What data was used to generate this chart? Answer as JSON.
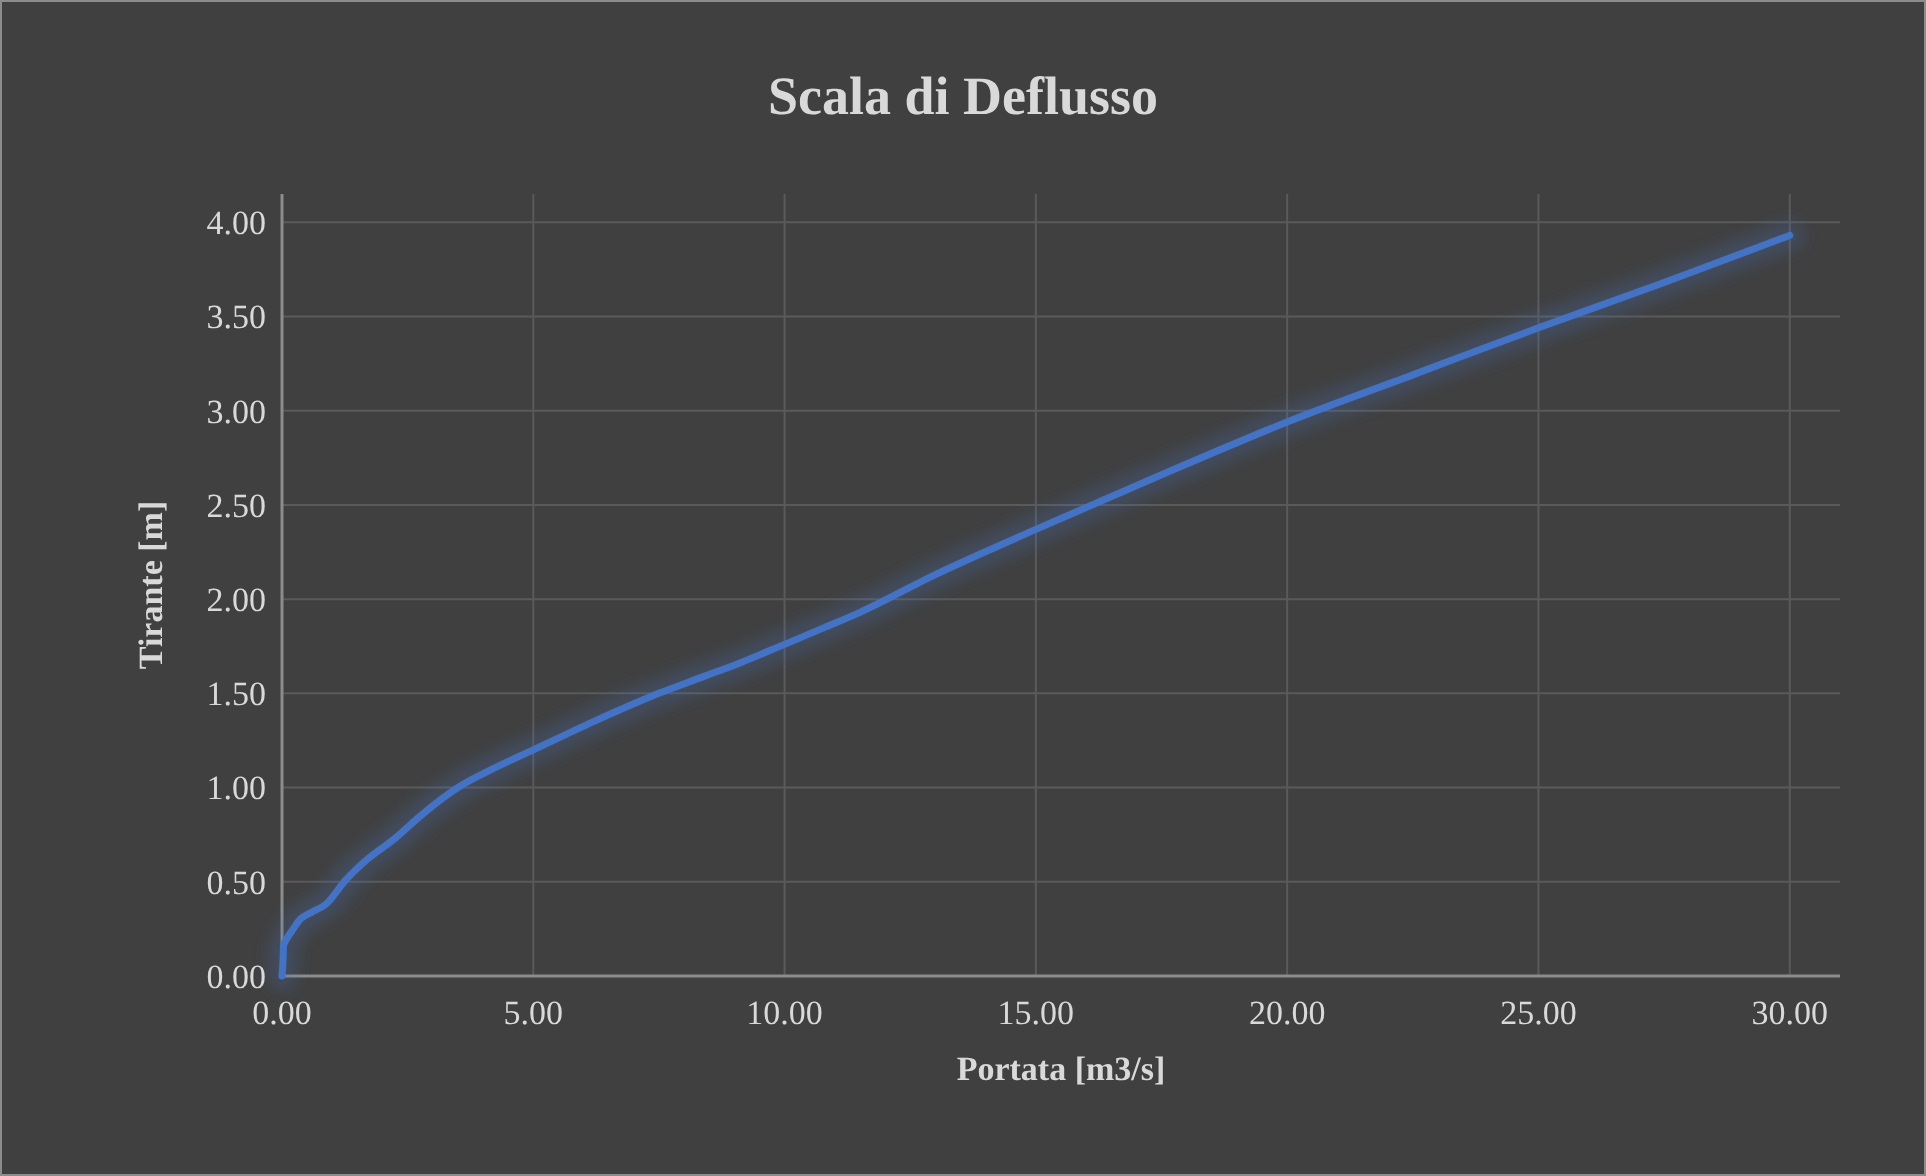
{
  "chart_data": {
    "type": "line",
    "title": "Scala di Deflusso",
    "xlabel": "Portata [m3/s]",
    "ylabel": "Tirante [m]",
    "series": [
      {
        "color": "#4472c4",
        "x": [
          0,
          0.02,
          0.03,
          0.1,
          0.2,
          0.36,
          0.6,
          0.87,
          1.27,
          1.7,
          2.2,
          2.8,
          3.5,
          4.2,
          5.0,
          6.2,
          7.5,
          8.4,
          9.1,
          10.0,
          10.8,
          11.5,
          13.0,
          15.0,
          17.5,
          20.0,
          22.5,
          25.0,
          27.5,
          30.0
        ],
        "values": [
          0,
          0.08,
          0.16,
          0.2,
          0.24,
          0.3,
          0.34,
          0.38,
          0.51,
          0.62,
          0.72,
          0.86,
          1.0,
          1.1,
          1.2,
          1.35,
          1.5,
          1.59,
          1.66,
          1.76,
          1.85,
          1.93,
          2.13,
          2.37,
          2.66,
          2.94,
          3.19,
          3.44,
          3.68,
          3.93
        ]
      }
    ],
    "xlim": [
      0,
      31
    ],
    "ylim": [
      0,
      4.15
    ],
    "xticks": [
      {
        "value": 0,
        "label": "0.00"
      },
      {
        "value": 5,
        "label": "5.00"
      },
      {
        "value": 10,
        "label": "10.00"
      },
      {
        "value": 15,
        "label": "15.00"
      },
      {
        "value": 20,
        "label": "20.00"
      },
      {
        "value": 25,
        "label": "25.00"
      },
      {
        "value": 30,
        "label": "30.00"
      }
    ],
    "yticks": [
      {
        "value": 0,
        "label": "0.00"
      },
      {
        "value": 0.5,
        "label": "0.50"
      },
      {
        "value": 1,
        "label": "1.00"
      },
      {
        "value": 1.5,
        "label": "1.50"
      },
      {
        "value": 2,
        "label": "2.00"
      },
      {
        "value": 2.5,
        "label": "2.50"
      },
      {
        "value": 3,
        "label": "3.00"
      },
      {
        "value": 3.5,
        "label": "3.50"
      },
      {
        "value": 4,
        "label": "4.00"
      }
    ],
    "grid": true,
    "marker": "none",
    "line_style": "solid"
  }
}
